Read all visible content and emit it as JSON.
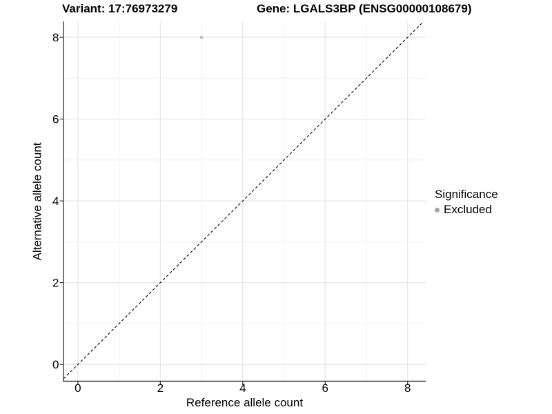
{
  "titles": {
    "variant": "Variant: 17:76973279",
    "gene": "Gene: LGALS3BP (ENSG00000108679)"
  },
  "axes": {
    "x_title": "Reference allele count",
    "y_title": "Alternative allele count"
  },
  "legend": {
    "title": "Significance",
    "items": [
      {
        "label": "Excluded",
        "swatch_color": "#a6a6a6"
      }
    ]
  },
  "colors": {
    "major_grid": "#e3e3e3",
    "minor_grid": "#f0f0f0",
    "axis_line": "#3c3c3c",
    "tick_mark": "#333333",
    "tick_label": "#000000",
    "identity_line": "#000000"
  },
  "chart_data": {
    "type": "scatter",
    "title": "Variant: 17:76973279 — Gene: LGALS3BP (ENSG00000108679)",
    "xlabel": "Reference allele count",
    "ylabel": "Alternative allele count",
    "xlim": [
      -0.35,
      8.44
    ],
    "ylim": [
      -0.41,
      8.39
    ],
    "x_major_ticks": [
      0,
      2,
      4,
      6,
      8
    ],
    "y_major_ticks": [
      0,
      2,
      4,
      6,
      8
    ],
    "x_minor_gridlines": [
      1,
      3,
      5,
      7
    ],
    "y_minor_gridlines": [
      1,
      3,
      5,
      7
    ],
    "grid": true,
    "legend_position": "right",
    "series": [
      {
        "name": "Excluded",
        "color": "#bebebe",
        "points": [
          {
            "x": 3,
            "y": 8
          }
        ]
      }
    ],
    "reference_line": {
      "type": "identity",
      "slope": 1,
      "intercept": 0,
      "style": "dashed",
      "color": "#000000"
    }
  }
}
